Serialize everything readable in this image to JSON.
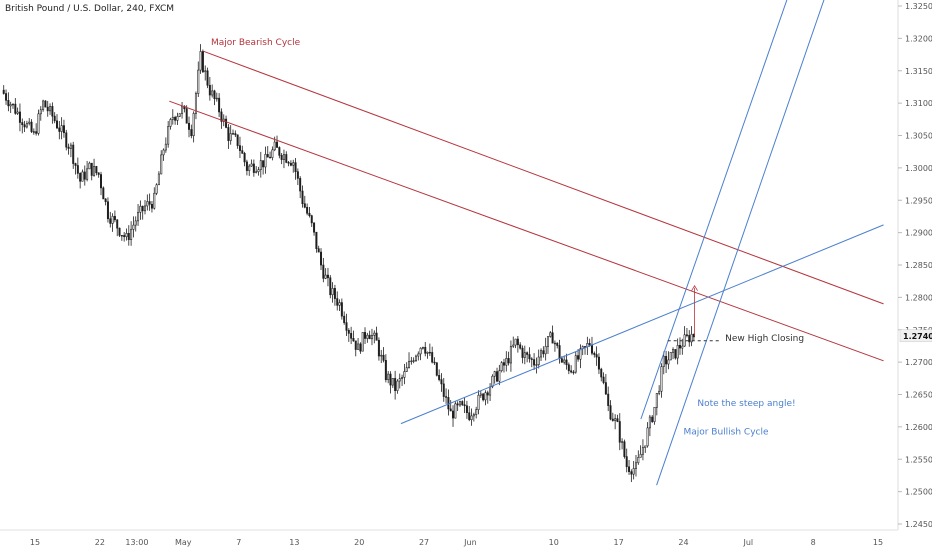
{
  "header": {
    "title": "British Pound / U.S. Dollar, 240, FXCM"
  },
  "colors": {
    "bearish": "#b5343c",
    "bullish": "#4a7fcf",
    "candle": "#1e1e1e",
    "axis_text": "#555555",
    "dashed": "#333333",
    "price_tag_bg": "#f0f0f0"
  },
  "chart_data": {
    "type": "candlestick",
    "title": "British Pound / U.S. Dollar, 240, FXCM",
    "xlabel": "",
    "ylabel": "",
    "ylim": [
      1.243,
      1.3265
    ],
    "y_ticks": [
      "1.32500",
      "1.32000",
      "1.31500",
      "1.31000",
      "1.30500",
      "1.30000",
      "1.29500",
      "1.29000",
      "1.28500",
      "1.28000",
      "1.27500",
      "1.27000",
      "1.26500",
      "1.26000",
      "1.25500",
      "1.25000",
      "1.24500"
    ],
    "x_ticks": [
      {
        "label": "15",
        "day": 0
      },
      {
        "label": "22",
        "day": 7
      },
      {
        "label": "13:00",
        "day": 11
      },
      {
        "label": "May",
        "day": 16
      },
      {
        "label": "7",
        "day": 22
      },
      {
        "label": "13",
        "day": 28
      },
      {
        "label": "20",
        "day": 35
      },
      {
        "label": "27",
        "day": 42
      },
      {
        "label": "Jun",
        "day": 47
      },
      {
        "label": "10",
        "day": 56
      },
      {
        "label": "17",
        "day": 63
      },
      {
        "label": "24",
        "day": 70
      },
      {
        "label": "Jul",
        "day": 77
      },
      {
        "label": "8",
        "day": 84
      },
      {
        "label": "15",
        "day": 91
      }
    ],
    "x_domain_days": [
      0,
      91
    ],
    "last_price": {
      "label": "1.27407",
      "value": 1.27407
    },
    "price_path": [
      [
        -3.5,
        1.312
      ],
      [
        -1.5,
        1.308
      ],
      [
        0,
        1.305
      ],
      [
        1,
        1.31
      ],
      [
        2,
        1.308
      ],
      [
        4,
        1.303
      ],
      [
        5,
        1.298
      ],
      [
        6,
        1.3
      ],
      [
        7,
        1.299
      ],
      [
        8,
        1.293
      ],
      [
        9,
        1.291
      ],
      [
        10,
        1.289
      ],
      [
        11,
        1.292
      ],
      [
        12,
        1.294
      ],
      [
        13,
        1.295
      ],
      [
        14,
        1.303
      ],
      [
        15,
        1.308
      ],
      [
        16,
        1.309
      ],
      [
        17,
        1.306
      ],
      [
        18,
        1.317
      ],
      [
        19,
        1.312
      ],
      [
        20,
        1.309
      ],
      [
        21,
        1.305
      ],
      [
        22,
        1.304
      ],
      [
        23,
        1.3
      ],
      [
        25,
        1.301
      ],
      [
        26,
        1.303
      ],
      [
        27,
        1.302
      ],
      [
        28,
        1.301
      ],
      [
        29,
        1.295
      ],
      [
        30,
        1.291
      ],
      [
        31,
        1.285
      ],
      [
        32,
        1.281
      ],
      [
        33,
        1.279
      ],
      [
        34,
        1.275
      ],
      [
        35,
        1.272
      ],
      [
        36,
        1.275
      ],
      [
        37,
        1.273
      ],
      [
        38,
        1.268
      ],
      [
        39,
        1.266
      ],
      [
        40,
        1.268
      ],
      [
        41,
        1.271
      ],
      [
        42,
        1.273
      ],
      [
        43,
        1.27
      ],
      [
        44,
        1.266
      ],
      [
        45,
        1.262
      ],
      [
        46,
        1.263
      ],
      [
        47,
        1.262
      ],
      [
        48,
        1.264
      ],
      [
        49,
        1.266
      ],
      [
        50,
        1.268
      ],
      [
        51,
        1.27
      ],
      [
        52,
        1.273
      ],
      [
        53,
        1.271
      ],
      [
        54,
        1.27
      ],
      [
        55,
        1.272
      ],
      [
        56,
        1.274
      ],
      [
        57,
        1.27
      ],
      [
        58,
        1.269
      ],
      [
        59,
        1.271
      ],
      [
        60,
        1.273
      ],
      [
        61,
        1.27
      ],
      [
        62,
        1.263
      ],
      [
        63,
        1.26
      ],
      [
        64,
        1.254
      ],
      [
        65,
        1.2535
      ],
      [
        66,
        1.258
      ],
      [
        67,
        1.263
      ],
      [
        68,
        1.27
      ],
      [
        69,
        1.271
      ],
      [
        70,
        1.273
      ],
      [
        71,
        1.2742
      ]
    ],
    "trendlines": [
      {
        "name": "bearish-upper",
        "color": "bearish",
        "from": [
          18.2,
          1.318
        ],
        "to": [
          91.6,
          1.279
        ]
      },
      {
        "name": "bearish-lower",
        "color": "bearish",
        "from": [
          14.5,
          1.3103
        ],
        "to": [
          91.6,
          1.2702
        ]
      },
      {
        "name": "bullish-base",
        "color": "bullish",
        "from": [
          39.5,
          1.2605
        ],
        "to": [
          91.6,
          1.2912
        ]
      },
      {
        "name": "bullish-steep-upper",
        "color": "bullish",
        "from": [
          65.4,
          1.2612
        ],
        "to": [
          81.3,
          1.3265
        ]
      },
      {
        "name": "bullish-steep-lower",
        "color": "bullish",
        "from": [
          67.1,
          1.251
        ],
        "to": [
          85.3,
          1.3265
        ]
      }
    ],
    "annotations": [
      {
        "text": "Major Bearish Cycle",
        "color": "bearish",
        "at": [
          19.0,
          1.319
        ]
      },
      {
        "text": "New High Closing",
        "color": "dashed",
        "at": [
          74.5,
          1.2733
        ]
      },
      {
        "text": "Note the steep angle!",
        "color": "bullish",
        "at": [
          71.5,
          1.2632
        ]
      },
      {
        "text": "Major Bullish Cycle",
        "color": "bullish",
        "at": [
          70.0,
          1.2588
        ]
      }
    ],
    "dashed_level": {
      "value": 1.2733,
      "from_day": 68.3,
      "to_day": 74.0
    },
    "arrow": {
      "day": 71.2,
      "from_value": 1.274,
      "to_value": 1.2818
    }
  }
}
